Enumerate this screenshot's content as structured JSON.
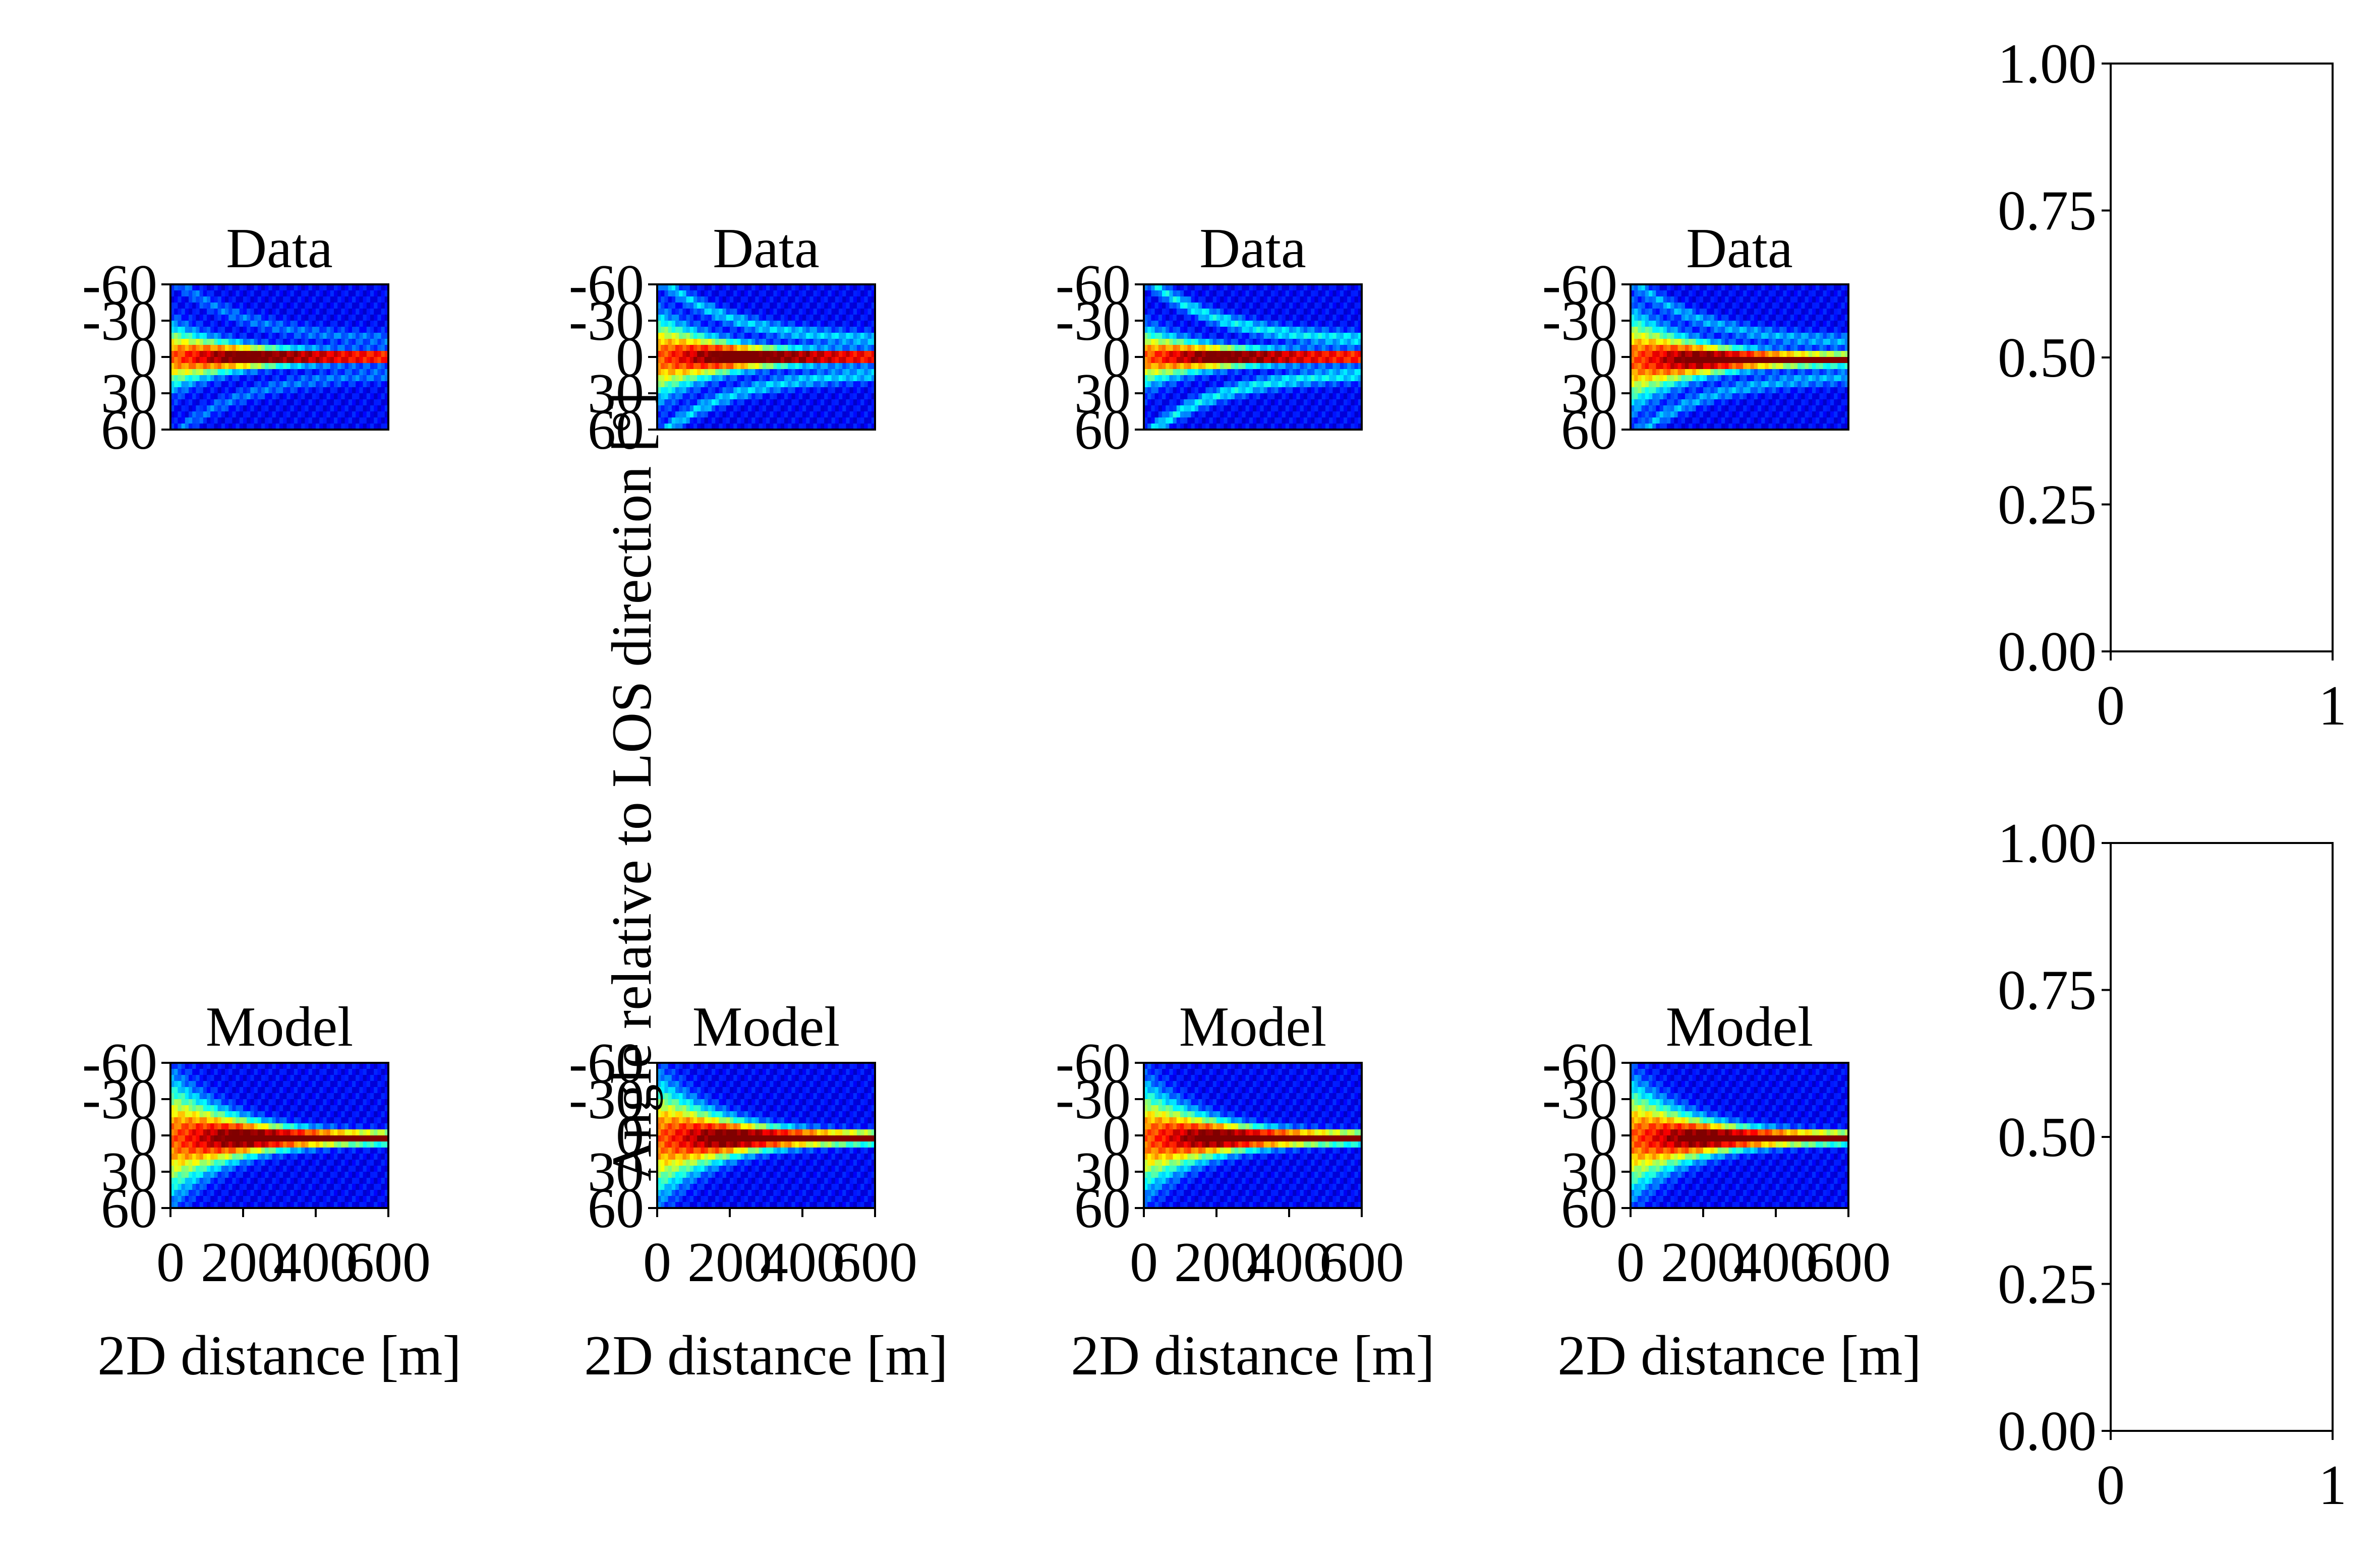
{
  "figure": {
    "ylabel": "Angle relative to LOS direction [°]"
  },
  "chart_data": [
    {
      "type": "heatmap",
      "title": "Data",
      "panel": "data-1",
      "xlabel": "",
      "ylabel": "",
      "yticks": [
        "-60",
        "-30",
        "0",
        "30",
        "60"
      ],
      "xticks": [],
      "xlim": [
        0,
        600
      ],
      "ylim": [
        -60,
        60
      ],
      "colormap": "jet",
      "pattern": {
        "center": 0,
        "spread": 0.5,
        "wings": 0.35
      }
    },
    {
      "type": "heatmap",
      "title": "Data",
      "panel": "data-2",
      "xlabel": "",
      "ylabel": "",
      "yticks": [
        "-60",
        "-30",
        "0",
        "30",
        "60"
      ],
      "xticks": [],
      "xlim": [
        0,
        600
      ],
      "ylim": [
        -60,
        60
      ],
      "colormap": "jet",
      "pattern": {
        "center": 0,
        "spread": 0.7,
        "wings": 0.6
      }
    },
    {
      "type": "heatmap",
      "title": "Data",
      "panel": "data-3",
      "xlabel": "",
      "ylabel": "",
      "yticks": [
        "-60",
        "-30",
        "0",
        "30",
        "60"
      ],
      "xticks": [],
      "xlim": [
        0,
        600
      ],
      "ylim": [
        -60,
        60
      ],
      "colormap": "jet",
      "pattern": {
        "center": 0,
        "spread": 0.45,
        "wings": 0.7
      }
    },
    {
      "type": "heatmap",
      "title": "Data",
      "panel": "data-4",
      "xlabel": "",
      "ylabel": "",
      "yticks": [
        "-60",
        "-30",
        "0",
        "30",
        "60"
      ],
      "xticks": [],
      "xlim": [
        0,
        600
      ],
      "ylim": [
        -60,
        60
      ],
      "colormap": "jet",
      "pattern": {
        "center": 2,
        "spread": 0.8,
        "wings": 0.5
      }
    },
    {
      "type": "line",
      "title": "",
      "panel": "empty-top",
      "xlabel": "",
      "ylabel": "",
      "xticks": [
        "0",
        "1"
      ],
      "yticks": [
        "0.00",
        "0.25",
        "0.50",
        "0.75",
        "1.00"
      ],
      "xlim": [
        0,
        1
      ],
      "ylim": [
        0,
        1
      ],
      "series": []
    },
    {
      "type": "heatmap",
      "title": "Model",
      "panel": "model-1",
      "xlabel": "2D distance [m]",
      "ylabel": "",
      "yticks": [
        "-60",
        "-30",
        "0",
        "30",
        "60"
      ],
      "xticks": [
        "0",
        "200",
        "400",
        "600"
      ],
      "xlim": [
        0,
        600
      ],
      "ylim": [
        -60,
        60
      ],
      "colormap": "jet",
      "pattern": {
        "center": 2,
        "spread": 1.0,
        "wings": 0.0
      }
    },
    {
      "type": "heatmap",
      "title": "Model",
      "panel": "model-2",
      "xlabel": "2D distance [m]",
      "ylabel": "",
      "yticks": [
        "-60",
        "-30",
        "0",
        "30",
        "60"
      ],
      "xticks": [
        "0",
        "200",
        "400",
        "600"
      ],
      "xlim": [
        0,
        600
      ],
      "ylim": [
        -60,
        60
      ],
      "colormap": "jet",
      "pattern": {
        "center": 2,
        "spread": 1.0,
        "wings": 0.0
      }
    },
    {
      "type": "heatmap",
      "title": "Model",
      "panel": "model-3",
      "xlabel": "2D distance [m]",
      "ylabel": "",
      "yticks": [
        "-60",
        "-30",
        "0",
        "30",
        "60"
      ],
      "xticks": [
        "0",
        "200",
        "400",
        "600"
      ],
      "xlim": [
        0,
        600
      ],
      "ylim": [
        -60,
        60
      ],
      "colormap": "jet",
      "pattern": {
        "center": 2,
        "spread": 0.9,
        "wings": 0.0
      }
    },
    {
      "type": "heatmap",
      "title": "Model",
      "panel": "model-4",
      "xlabel": "2D distance [m]",
      "ylabel": "",
      "yticks": [
        "-60",
        "-30",
        "0",
        "30",
        "60"
      ],
      "xticks": [
        "0",
        "200",
        "400",
        "600"
      ],
      "xlim": [
        0,
        600
      ],
      "ylim": [
        -60,
        60
      ],
      "colormap": "jet",
      "pattern": {
        "center": 2,
        "spread": 0.95,
        "wings": 0.0
      }
    },
    {
      "type": "line",
      "title": "",
      "panel": "empty-bottom",
      "xlabel": "",
      "ylabel": "",
      "xticks": [
        "0",
        "1"
      ],
      "yticks": [
        "0.00",
        "0.25",
        "0.50",
        "0.75",
        "1.00"
      ],
      "xlim": [
        0,
        1
      ],
      "ylim": [
        0,
        1
      ],
      "series": []
    }
  ]
}
